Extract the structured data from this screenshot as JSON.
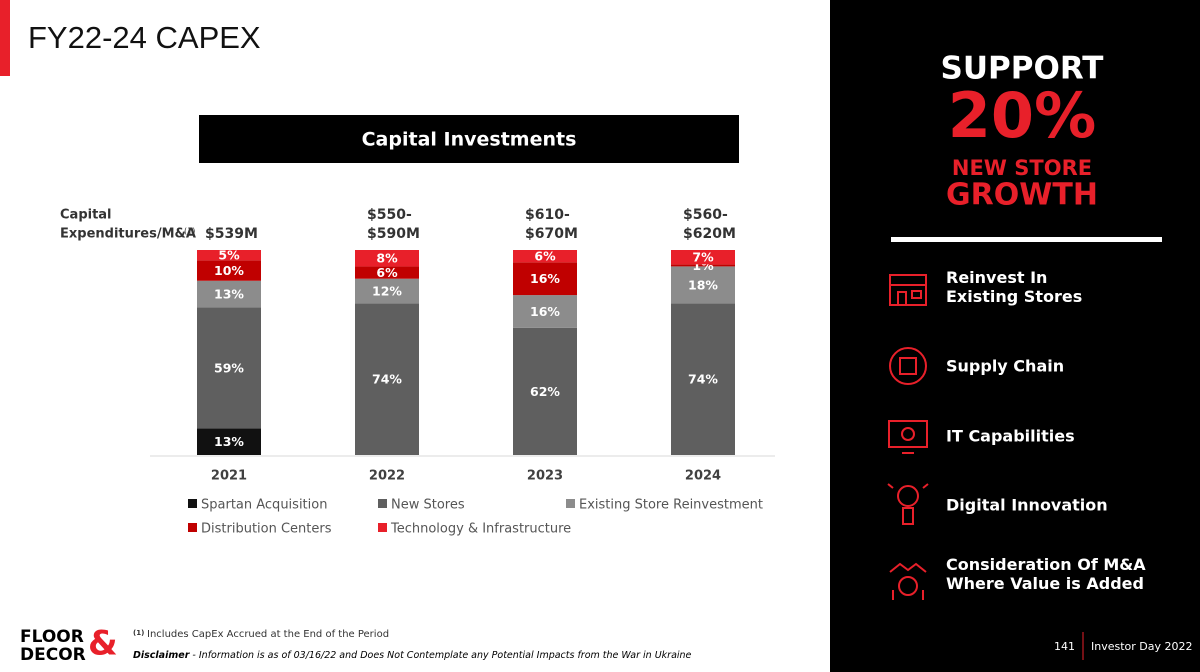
{
  "header": {
    "title": "FY22-24 CAPEX"
  },
  "chart_data": {
    "type": "stacked_bar",
    "title": "Capital Investments",
    "y_label": [
      "Capital",
      "Expenditures/M&A"
    ],
    "y_label_note": "(1)",
    "categories": [
      "2021",
      "2022",
      "2023",
      "2024"
    ],
    "total_labels": [
      [
        "$539M"
      ],
      [
        "$550-",
        "$590M"
      ],
      [
        "$610-",
        "$670M"
      ],
      [
        "$560-",
        "$620M"
      ]
    ],
    "ylim": [
      0,
      100
    ],
    "series": [
      {
        "name": "Spartan Acquisition",
        "color": "#111111",
        "values": [
          13,
          0,
          0,
          0
        ],
        "value_labels": [
          "13%",
          null,
          null,
          null
        ]
      },
      {
        "name": "New Stores",
        "color": "#5f5f5f",
        "values": [
          59,
          74,
          62,
          74
        ],
        "value_labels": [
          "59%",
          "74%",
          "62%",
          "74%"
        ]
      },
      {
        "name": "Existing Store Reinvestment",
        "color": "#8c8c8c",
        "values": [
          13,
          12,
          16,
          18
        ],
        "value_labels": [
          "13%",
          "12%",
          "16%",
          "18%"
        ]
      },
      {
        "name": "Distribution Centers",
        "color": "#c00000",
        "values": [
          10,
          6,
          16,
          1
        ],
        "value_labels": [
          "10%",
          "6%",
          "16%",
          "1%"
        ]
      },
      {
        "name": "Technology & Infrastructure",
        "color": "#e8202a",
        "values": [
          5,
          8,
          6,
          7
        ],
        "value_labels": [
          "5%",
          "8%",
          "6%",
          "7%"
        ]
      }
    ]
  },
  "sidebar": {
    "headline": "SUPPORT",
    "figure": "20%",
    "subline": [
      "NEW STORE",
      "GROWTH"
    ],
    "items": [
      [
        "Reinvest In",
        "Existing Stores"
      ],
      [
        "Supply Chain"
      ],
      [
        "IT Capabilities"
      ],
      [
        "Digital Innovation"
      ],
      [
        "Consideration Of M&A",
        "Where Value is Added"
      ]
    ]
  },
  "footer": {
    "footnote_marker": "(1)",
    "footnote": "Includes CapEx Accrued at the End of the Period",
    "disclaimer_label": "Disclaimer",
    "disclaimer": "- Information is as of 03/16/22 and Does Not Contemplate any Potential Impacts from the War in Ukraine",
    "page_number": "141",
    "event": "Investor Day 2022",
    "logo": {
      "top": "FLOOR",
      "amp": "&",
      "bottom": "DECOR"
    }
  }
}
